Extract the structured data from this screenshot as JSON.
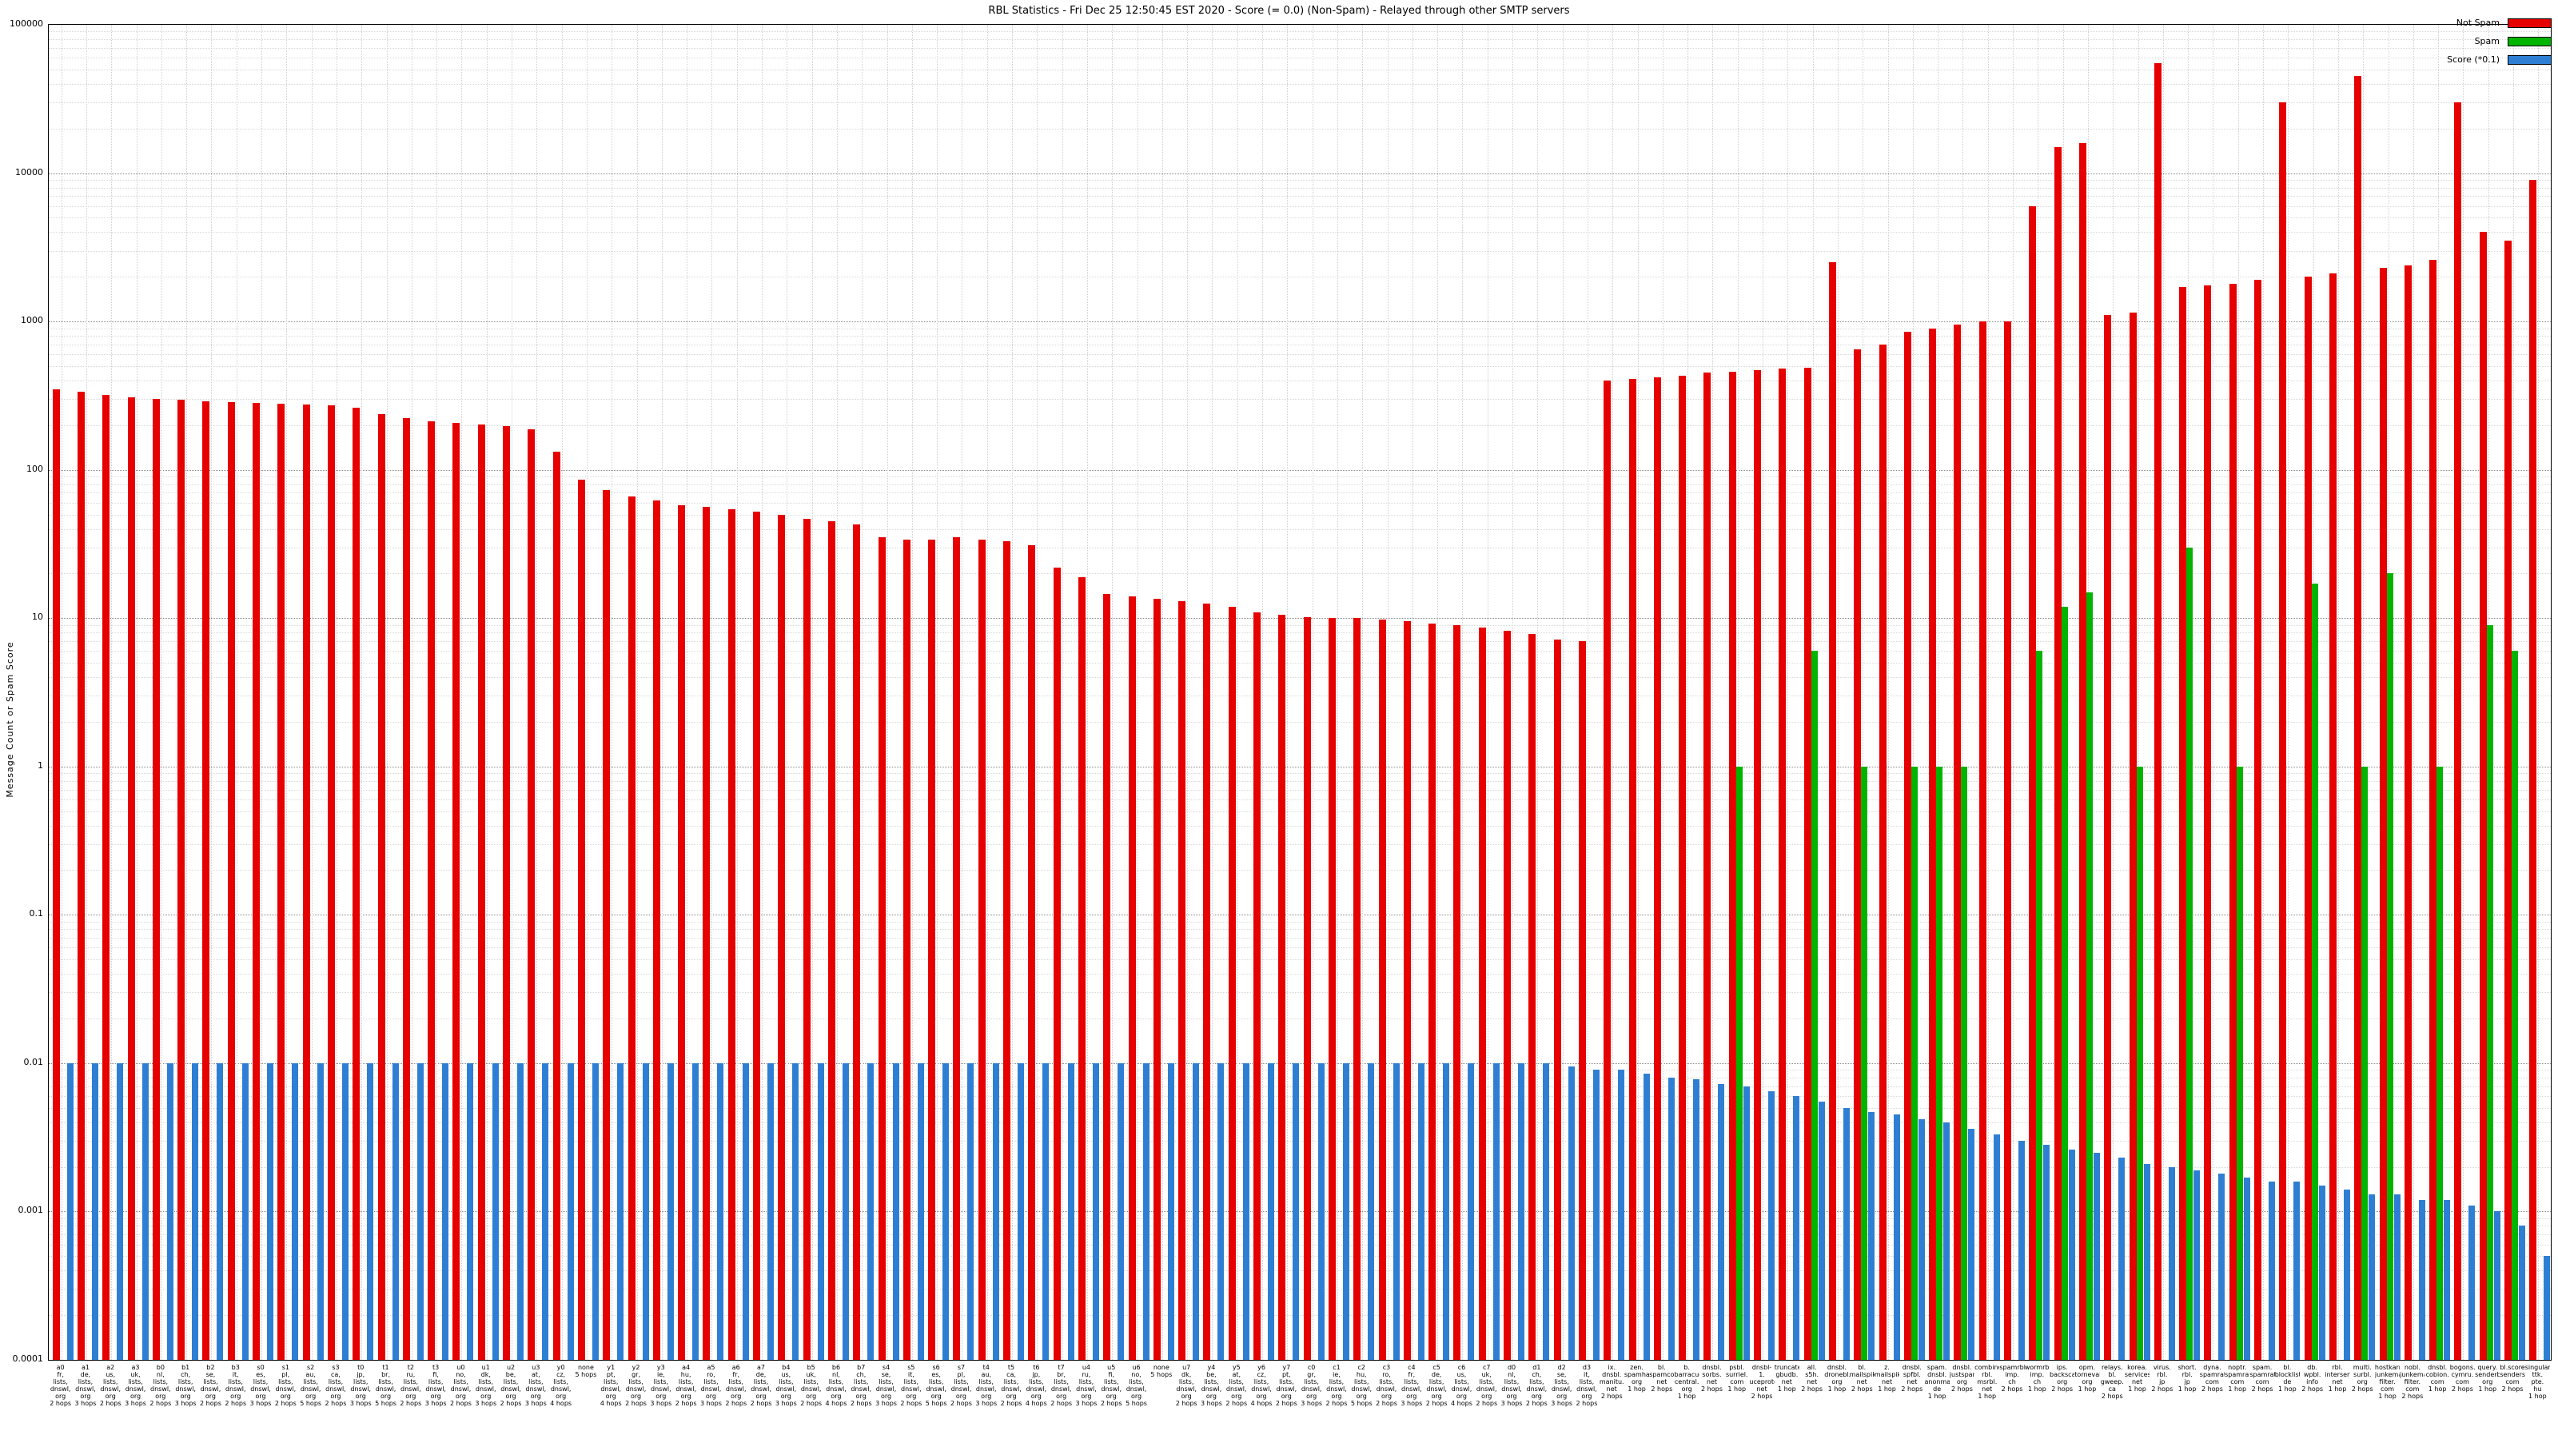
{
  "chart_data": {
    "type": "bar",
    "title": "RBL Statistics - Fri Dec 25 12:50:45 EST 2020 - Score (= 0.0) (Non-Spam) - Relayed through other SMTP servers",
    "ylabel": "Message Count or Spam Score",
    "xlabel": "",
    "ylim": [
      0.0001,
      100000
    ],
    "y_scale": "log",
    "grid": true,
    "legend_position": "top-right",
    "y_tick_labels": [
      "100000",
      "10000",
      "1000",
      "100",
      "10",
      "1",
      "0.1",
      "0.01",
      "0.001",
      "0.0001"
    ],
    "colors": {
      "not_spam": "#e60000",
      "spam": "#00b400",
      "score": "#2e7fd4"
    },
    "legend": [
      {
        "label": "Not Spam",
        "series": "not_spam",
        "color": "#e60000"
      },
      {
        "label": "Spam",
        "series": "spam",
        "color": "#00b400"
      },
      {
        "label": "Score (*0.1)",
        "series": "score",
        "color": "#2e7fd4"
      }
    ],
    "groups": [
      {
        "label": "a0\nfr,\nlists,\ndnswl,\norg\n2 hops",
        "not_spam": 350,
        "spam": 0,
        "score": 0.01
      },
      {
        "label": "a1\nde,\nlists,\ndnswl,\norg\n3 hops",
        "not_spam": 335,
        "spam": 0,
        "score": 0.01
      },
      {
        "label": "a2\nus,\nlists,\ndnswl,\norg\n2 hops",
        "not_spam": 320,
        "spam": 0,
        "score": 0.01
      },
      {
        "label": "a3\nuk,\nlists,\ndnswl,\norg\n3 hops",
        "not_spam": 310,
        "spam": 0,
        "score": 0.01
      },
      {
        "label": "b0\nnl,\nlists,\ndnswl,\norg\n2 hops",
        "not_spam": 302,
        "spam": 0,
        "score": 0.01
      },
      {
        "label": "b1\nch,\nlists,\ndnswl,\norg\n3 hops",
        "not_spam": 296,
        "spam": 0,
        "score": 0.01
      },
      {
        "label": "b2\nse,\nlists,\ndnswl,\norg\n2 hops",
        "not_spam": 291,
        "spam": 0,
        "score": 0.01
      },
      {
        "label": "b3\nit,\nlists,\ndnswl,\norg\n2 hops",
        "not_spam": 287,
        "spam": 0,
        "score": 0.01
      },
      {
        "label": "s0\nes,\nlists,\ndnswl,\norg\n3 hops",
        "not_spam": 283,
        "spam": 0,
        "score": 0.01
      },
      {
        "label": "s1\npl,\nlists,\ndnswl,\norg\n2 hops",
        "not_spam": 280,
        "spam": 0,
        "score": 0.01
      },
      {
        "label": "s2\nau,\nlists,\ndnswl,\norg\n5 hops",
        "not_spam": 277,
        "spam": 0,
        "score": 0.01
      },
      {
        "label": "s3\nca,\nlists,\ndnswl,\norg\n2 hops",
        "not_spam": 273,
        "spam": 0,
        "score": 0.01
      },
      {
        "label": "t0\njp,\nlists,\ndnswl,\norg\n3 hops",
        "not_spam": 262,
        "spam": 0,
        "score": 0.01
      },
      {
        "label": "t1\nbr,\nlists,\ndnswl,\norg\n5 hops",
        "not_spam": 237,
        "spam": 0,
        "score": 0.01
      },
      {
        "label": "t2\nru,\nlists,\ndnswl,\norg\n2 hops",
        "not_spam": 222,
        "spam": 0,
        "score": 0.01
      },
      {
        "label": "t3\nfi,\nlists,\ndnswl,\norg\n3 hops",
        "not_spam": 213,
        "spam": 0,
        "score": 0.01
      },
      {
        "label": "u0\nno,\nlists,\ndnswl,\norg\n2 hops",
        "not_spam": 206,
        "spam": 0,
        "score": 0.01
      },
      {
        "label": "u1\ndk,\nlists,\ndnswl,\norg\n3 hops",
        "not_spam": 201,
        "spam": 0,
        "score": 0.01
      },
      {
        "label": "u2\nbe,\nlists,\ndnswl,\norg\n2 hops",
        "not_spam": 196,
        "spam": 0,
        "score": 0.01
      },
      {
        "label": "u3\nat,\nlists,\ndnswl,\norg\n3 hops",
        "not_spam": 188,
        "spam": 0,
        "score": 0.01
      },
      {
        "label": "y0\ncz,\nlists,\ndnswl,\norg\n4 hops",
        "not_spam": 133,
        "spam": 0,
        "score": 0.01
      },
      {
        "label": "none\n5 hops",
        "not_spam": 86,
        "spam": 0,
        "score": 0.01
      },
      {
        "label": "y1\npt,\nlists,\ndnswl,\norg\n4 hops",
        "not_spam": 73,
        "spam": 0,
        "score": 0.01
      },
      {
        "label": "y2\ngr,\nlists,\ndnswl,\norg\n2 hops",
        "not_spam": 66,
        "spam": 0,
        "score": 0.01
      },
      {
        "label": "y3\nie,\nlists,\ndnswl,\norg\n3 hops",
        "not_spam": 62,
        "spam": 0,
        "score": 0.01
      },
      {
        "label": "a4\nhu,\nlists,\ndnswl,\norg\n2 hops",
        "not_spam": 58,
        "spam": 0,
        "score": 0.01
      },
      {
        "label": "a5\nro,\nlists,\ndnswl,\norg\n3 hops",
        "not_spam": 56,
        "spam": 0,
        "score": 0.01
      },
      {
        "label": "a6\nfr,\nlists,\ndnswl,\norg\n2 hops",
        "not_spam": 54,
        "spam": 0,
        "score": 0.01
      },
      {
        "label": "a7\nde,\nlists,\ndnswl,\norg\n2 hops",
        "not_spam": 52,
        "spam": 0,
        "score": 0.01
      },
      {
        "label": "b4\nus,\nlists,\ndnswl,\norg\n3 hops",
        "not_spam": 50,
        "spam": 0,
        "score": 0.01
      },
      {
        "label": "b5\nuk,\nlists,\ndnswl,\norg\n2 hops",
        "not_spam": 47,
        "spam": 0,
        "score": 0.01
      },
      {
        "label": "b6\nnl,\nlists,\ndnswl,\norg\n4 hops",
        "not_spam": 45,
        "spam": 0,
        "score": 0.01
      },
      {
        "label": "b7\nch,\nlists,\ndnswl,\norg\n2 hops",
        "not_spam": 43,
        "spam": 0,
        "score": 0.01
      },
      {
        "label": "s4\nse,\nlists,\ndnswl,\norg\n3 hops",
        "not_spam": 35,
        "spam": 0,
        "score": 0.01
      },
      {
        "label": "s5\nit,\nlists,\ndnswl,\norg\n2 hops",
        "not_spam": 34,
        "spam": 0,
        "score": 0.01
      },
      {
        "label": "s6\nes,\nlists,\ndnswl,\norg\n5 hops",
        "not_spam": 34,
        "spam": 0,
        "score": 0.01
      },
      {
        "label": "s7\npl,\nlists,\ndnswl,\norg\n2 hops",
        "not_spam": 35,
        "spam": 0,
        "score": 0.01
      },
      {
        "label": "t4\nau,\nlists,\ndnswl,\norg\n3 hops",
        "not_spam": 34,
        "spam": 0,
        "score": 0.01
      },
      {
        "label": "t5\nca,\nlists,\ndnswl,\norg\n2 hops",
        "not_spam": 33,
        "spam": 0,
        "score": 0.01
      },
      {
        "label": "t6\njp,\nlists,\ndnswl,\norg\n4 hops",
        "not_spam": 31,
        "spam": 0,
        "score": 0.01
      },
      {
        "label": "t7\nbr,\nlists,\ndnswl,\norg\n2 hops",
        "not_spam": 22,
        "spam": 0,
        "score": 0.01
      },
      {
        "label": "u4\nru,\nlists,\ndnswl,\norg\n3 hops",
        "not_spam": 19,
        "spam": 0,
        "score": 0.01
      },
      {
        "label": "u5\nfi,\nlists,\ndnswl,\norg\n2 hops",
        "not_spam": 14.5,
        "spam": 0,
        "score": 0.01
      },
      {
        "label": "u6\nno,\nlists,\ndnswl,\norg\n5 hops",
        "not_spam": 14,
        "spam": 0,
        "score": 0.01
      },
      {
        "label": "none\n5 hops",
        "not_spam": 13.5,
        "spam": 0,
        "score": 0.01
      },
      {
        "label": "u7\ndk,\nlists,\ndnswl,\norg\n2 hops",
        "not_spam": 13,
        "spam": 0,
        "score": 0.01
      },
      {
        "label": "y4\nbe,\nlists,\ndnswl,\norg\n3 hops",
        "not_spam": 12.5,
        "spam": 0,
        "score": 0.01
      },
      {
        "label": "y5\nat,\nlists,\ndnswl,\norg\n2 hops",
        "not_spam": 12,
        "spam": 0,
        "score": 0.01
      },
      {
        "label": "y6\ncz,\nlists,\ndnswl,\norg\n4 hops",
        "not_spam": 11,
        "spam": 0,
        "score": 0.01
      },
      {
        "label": "y7\npt,\nlists,\ndnswl,\norg\n2 hops",
        "not_spam": 10.5,
        "spam": 0,
        "score": 0.01
      },
      {
        "label": "c0\ngr,\nlists,\ndnswl,\norg\n3 hops",
        "not_spam": 10.2,
        "spam": 0,
        "score": 0.01
      },
      {
        "label": "c1\nie,\nlists,\ndnswl,\norg\n2 hops",
        "not_spam": 10,
        "spam": 0,
        "score": 0.01
      },
      {
        "label": "c2\nhu,\nlists,\ndnswl,\norg\n5 hops",
        "not_spam": 10,
        "spam": 0,
        "score": 0.01
      },
      {
        "label": "c3\nro,\nlists,\ndnswl,\norg\n2 hops",
        "not_spam": 9.8,
        "spam": 0,
        "score": 0.01
      },
      {
        "label": "c4\nfr,\nlists,\ndnswl,\norg\n3 hops",
        "not_spam": 9.5,
        "spam": 0,
        "score": 0.01
      },
      {
        "label": "c5\nde,\nlists,\ndnswl,\norg\n2 hops",
        "not_spam": 9.2,
        "spam": 0,
        "score": 0.01
      },
      {
        "label": "c6\nus,\nlists,\ndnswl,\norg\n4 hops",
        "not_spam": 9,
        "spam": 0,
        "score": 0.01
      },
      {
        "label": "c7\nuk,\nlists,\ndnswl,\norg\n2 hops",
        "not_spam": 8.6,
        "spam": 0,
        "score": 0.01
      },
      {
        "label": "d0\nnl,\nlists,\ndnswl,\norg\n3 hops",
        "not_spam": 8.2,
        "spam": 0,
        "score": 0.01
      },
      {
        "label": "d1\nch,\nlists,\ndnswl,\norg\n2 hops",
        "not_spam": 7.8,
        "spam": 0,
        "score": 0.01
      },
      {
        "label": "d2\nse,\nlists,\ndnswl,\norg\n3 hops",
        "not_spam": 7.2,
        "spam": 0,
        "score": 0.0095
      },
      {
        "label": "d3\nit,\nlists,\ndnswl,\norg\n2 hops",
        "not_spam": 7,
        "spam": 0,
        "score": 0.009
      },
      {
        "label": "ix.\ndnsbl.\nmanitu.\nnet\n2 hops",
        "not_spam": 400,
        "spam": 0,
        "score": 0.009
      },
      {
        "label": "zen.\nspamhaus.\norg\n1 hop",
        "not_spam": 410,
        "spam": 0,
        "score": 0.0085
      },
      {
        "label": "bl.\nspamcop.\nnet\n2 hops",
        "not_spam": 420,
        "spam": 0,
        "score": 0.008
      },
      {
        "label": "b.\nbarracuda\ncentral.\norg\n1 hop",
        "not_spam": 430,
        "spam": 0,
        "score": 0.0078
      },
      {
        "label": "dnsbl.\nsorbs.\nnet\n2 hops",
        "not_spam": 450,
        "spam": 0,
        "score": 0.0072
      },
      {
        "label": "psbl.\nsurriel.\ncom\n1 hop",
        "not_spam": 460,
        "spam": 1,
        "score": 0.007
      },
      {
        "label": "dnsbl-1.\nuceprotect.\nnet\n2 hops",
        "not_spam": 470,
        "spam": 0,
        "score": 0.0065
      },
      {
        "label": "truncate.\ngbudb.\nnet\n1 hop",
        "not_spam": 480,
        "spam": 0,
        "score": 0.006
      },
      {
        "label": "all.\ns5h.\nnet\n2 hops",
        "not_spam": 490,
        "spam": 6,
        "score": 0.0055
      },
      {
        "label": "dnsbl.\ndronebl.\norg\n1 hop",
        "not_spam": 2500,
        "spam": 0,
        "score": 0.005
      },
      {
        "label": "bl.\nmailspike.\nnet\n2 hops",
        "not_spam": 650,
        "spam": 1,
        "score": 0.0047
      },
      {
        "label": "z.\nmailspike.\nnet\n1 hop",
        "not_spam": 700,
        "spam": 0,
        "score": 0.0045
      },
      {
        "label": "dnsbl.\nspfbl.\nnet\n2 hops",
        "not_spam": 850,
        "spam": 1,
        "score": 0.0042
      },
      {
        "label": "spam.\ndnsbl.\nanonmails.\nde\n1 hop",
        "not_spam": 900,
        "spam": 1,
        "score": 0.004
      },
      {
        "label": "dnsbl.\njustspam.\norg\n2 hops",
        "not_spam": 950,
        "spam": 1,
        "score": 0.0036
      },
      {
        "label": "combined.\nrbl.\nmsrbl.\nnet\n1 hop",
        "not_spam": 1000,
        "spam": 0,
        "score": 0.0033
      },
      {
        "label": "spamrbl.\nimp.\nch\n2 hops",
        "not_spam": 1000,
        "spam": 0,
        "score": 0.003
      },
      {
        "label": "wormrbl.\nimp.\nch\n1 hop",
        "not_spam": 6000,
        "spam": 6,
        "score": 0.0028
      },
      {
        "label": "ips.\nbackscatterer.\norg\n2 hops",
        "not_spam": 15000,
        "spam": 12,
        "score": 0.0026
      },
      {
        "label": "opm.\ntornevall.\norg\n1 hop",
        "not_spam": 16000,
        "spam": 15,
        "score": 0.0025
      },
      {
        "label": "relays.\nbl.\ngweep.\nca\n2 hops",
        "not_spam": 1100,
        "spam": 0,
        "score": 0.0023
      },
      {
        "label": "korea.\nservices.\nnet\n1 hop",
        "not_spam": 1150,
        "spam": 1,
        "score": 0.0021
      },
      {
        "label": "virus.\nrbl.\njp\n2 hops",
        "not_spam": 55000,
        "spam": 0,
        "score": 0.002
      },
      {
        "label": "short.\nrbl.\njp\n1 hop",
        "not_spam": 1700,
        "spam": 30,
        "score": 0.0019
      },
      {
        "label": "dyna.\nspamrats.\ncom\n2 hops",
        "not_spam": 1750,
        "spam": 0,
        "score": 0.0018
      },
      {
        "label": "noptr.\nspamrats.\ncom\n1 hop",
        "not_spam": 1800,
        "spam": 1,
        "score": 0.0017
      },
      {
        "label": "spam.\nspamrats.\ncom\n2 hops",
        "not_spam": 1900,
        "spam": 0,
        "score": 0.0016
      },
      {
        "label": "bl.\nblocklist.\nde\n1 hop",
        "not_spam": 30000,
        "spam": 0,
        "score": 0.0016
      },
      {
        "label": "db.\nwpbl.\ninfo\n2 hops",
        "not_spam": 2000,
        "spam": 17,
        "score": 0.0015
      },
      {
        "label": "rbl.\ninterserver.\nnet\n1 hop",
        "not_spam": 2100,
        "spam": 0,
        "score": 0.0014
      },
      {
        "label": "multi.\nsurbl.\norg\n2 hops",
        "not_spam": 45000,
        "spam": 1,
        "score": 0.0013
      },
      {
        "label": "hostkarma.\njunkemail\nfilter.\ncom\n1 hop",
        "not_spam": 2300,
        "spam": 20,
        "score": 0.0013
      },
      {
        "label": "nobl.\njunkemail\nfilter.\ncom\n2 hops",
        "not_spam": 2400,
        "spam": 0,
        "score": 0.0012
      },
      {
        "label": "dnsbl.\ncobion.\ncom\n1 hop",
        "not_spam": 2600,
        "spam": 1,
        "score": 0.0012
      },
      {
        "label": "bogons.\ncymru.\ncom\n2 hops",
        "not_spam": 30000,
        "spam": 0,
        "score": 0.0011
      },
      {
        "label": "query.\nsenderbase.\norg\n1 hop",
        "not_spam": 4000,
        "spam": 9,
        "score": 0.001
      },
      {
        "label": "bl.score.\nsenderscore.\ncom\n2 hops",
        "not_spam": 3500,
        "spam": 6,
        "score": 0.0008
      },
      {
        "label": "singular.\nttk.\npte.\nhu\n1 hop",
        "not_spam": 9000,
        "spam": 0,
        "score": 0.0005
      }
    ]
  }
}
